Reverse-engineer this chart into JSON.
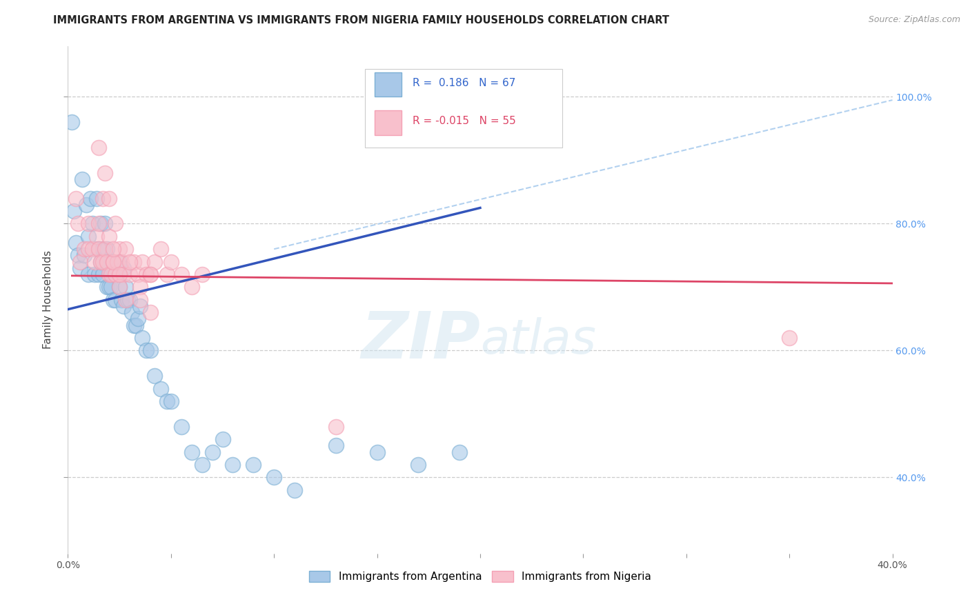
{
  "title": "IMMIGRANTS FROM ARGENTINA VS IMMIGRANTS FROM NIGERIA FAMILY HOUSEHOLDS CORRELATION CHART",
  "source": "Source: ZipAtlas.com",
  "ylabel": "Family Households",
  "legend_label1": "Immigrants from Argentina",
  "legend_label2": "Immigrants from Nigeria",
  "r1": "0.186",
  "n1": "67",
  "r2": "-0.015",
  "n2": "55",
  "color_arg": "#a8c8e8",
  "color_nig": "#f8c0cc",
  "edge_arg": "#7bafd4",
  "edge_nig": "#f4a0b4",
  "line_arg": "#3355bb",
  "line_nig": "#dd4466",
  "line_ref_color": "#aaccee",
  "xlim": [
    0.0,
    0.4
  ],
  "ylim": [
    0.28,
    1.08
  ],
  "yticks": [
    0.4,
    0.6,
    0.8,
    1.0
  ],
  "grid_color": "#cccccc",
  "background": "#ffffff",
  "argentina_x": [
    0.002,
    0.003,
    0.004,
    0.005,
    0.006,
    0.007,
    0.008,
    0.009,
    0.01,
    0.01,
    0.011,
    0.012,
    0.013,
    0.013,
    0.014,
    0.015,
    0.015,
    0.016,
    0.016,
    0.017,
    0.017,
    0.018,
    0.018,
    0.019,
    0.019,
    0.02,
    0.02,
    0.021,
    0.021,
    0.022,
    0.022,
    0.023,
    0.023,
    0.024,
    0.025,
    0.025,
    0.026,
    0.027,
    0.028,
    0.029,
    0.03,
    0.031,
    0.032,
    0.033,
    0.034,
    0.036,
    0.038,
    0.04,
    0.042,
    0.045,
    0.048,
    0.05,
    0.055,
    0.06,
    0.065,
    0.07,
    0.075,
    0.08,
    0.09,
    0.1,
    0.11,
    0.13,
    0.15,
    0.17,
    0.19,
    0.035,
    0.027
  ],
  "argentina_y": [
    0.96,
    0.82,
    0.77,
    0.75,
    0.73,
    0.87,
    0.75,
    0.83,
    0.78,
    0.72,
    0.84,
    0.8,
    0.76,
    0.72,
    0.84,
    0.76,
    0.72,
    0.8,
    0.74,
    0.76,
    0.72,
    0.8,
    0.74,
    0.76,
    0.7,
    0.74,
    0.7,
    0.74,
    0.7,
    0.72,
    0.68,
    0.72,
    0.68,
    0.72,
    0.74,
    0.7,
    0.68,
    0.67,
    0.7,
    0.68,
    0.68,
    0.66,
    0.64,
    0.64,
    0.65,
    0.62,
    0.6,
    0.6,
    0.56,
    0.54,
    0.52,
    0.52,
    0.48,
    0.44,
    0.42,
    0.44,
    0.46,
    0.42,
    0.42,
    0.4,
    0.38,
    0.45,
    0.44,
    0.42,
    0.44,
    0.67,
    0.73
  ],
  "nigeria_x": [
    0.004,
    0.005,
    0.006,
    0.008,
    0.01,
    0.01,
    0.012,
    0.013,
    0.014,
    0.015,
    0.015,
    0.016,
    0.017,
    0.018,
    0.019,
    0.02,
    0.021,
    0.022,
    0.023,
    0.024,
    0.025,
    0.026,
    0.027,
    0.028,
    0.03,
    0.032,
    0.034,
    0.036,
    0.038,
    0.04,
    0.042,
    0.045,
    0.048,
    0.05,
    0.055,
    0.06,
    0.065,
    0.035,
    0.04,
    0.025,
    0.022,
    0.028,
    0.035,
    0.04,
    0.13,
    0.35,
    0.017,
    0.02,
    0.022,
    0.025,
    0.03,
    0.015,
    0.018,
    0.02,
    0.023
  ],
  "nigeria_y": [
    0.84,
    0.8,
    0.74,
    0.76,
    0.8,
    0.76,
    0.76,
    0.74,
    0.78,
    0.8,
    0.76,
    0.74,
    0.74,
    0.76,
    0.74,
    0.72,
    0.72,
    0.74,
    0.72,
    0.74,
    0.76,
    0.74,
    0.72,
    0.76,
    0.72,
    0.74,
    0.72,
    0.74,
    0.72,
    0.72,
    0.74,
    0.76,
    0.72,
    0.74,
    0.72,
    0.7,
    0.72,
    0.7,
    0.72,
    0.7,
    0.74,
    0.68,
    0.68,
    0.66,
    0.48,
    0.62,
    0.84,
    0.78,
    0.76,
    0.72,
    0.74,
    0.92,
    0.88,
    0.84,
    0.8
  ],
  "arg_line_x0": 0.0,
  "arg_line_x1": 0.2,
  "arg_line_y0": 0.665,
  "arg_line_y1": 0.825,
  "nig_line_x0": 0.002,
  "nig_line_x1": 0.4,
  "nig_line_y0": 0.718,
  "nig_line_y1": 0.706,
  "ref_line_x0": 0.1,
  "ref_line_x1": 0.4,
  "ref_line_y0": 0.76,
  "ref_line_y1": 0.995
}
